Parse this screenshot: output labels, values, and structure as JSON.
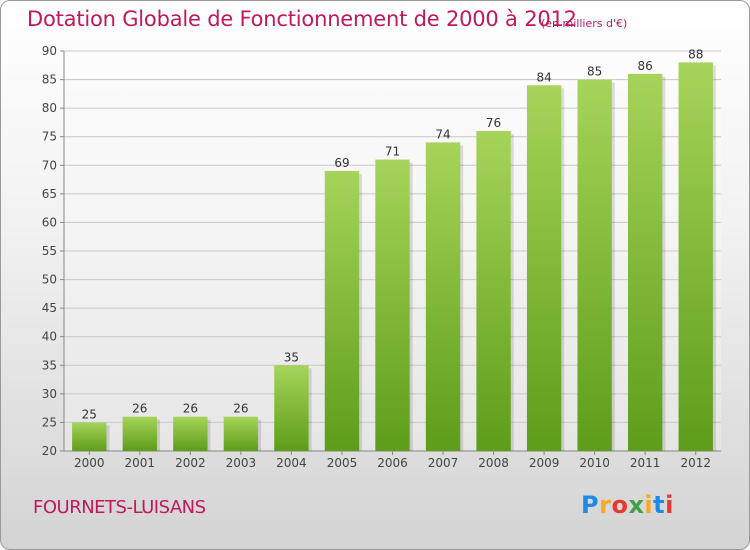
{
  "title": "Dotation Globale de Fonctionnement de 2000 à 2012",
  "unit_note": "(en milliers d'€)",
  "commune": "FOURNETS-LUISANS",
  "logo": {
    "text": "Proxiti",
    "letters": [
      {
        "ch": "P",
        "color": "#1e88e5"
      },
      {
        "ch": "r",
        "color": "#f9a825"
      },
      {
        "ch": "o",
        "color": "#e53935"
      },
      {
        "ch": "x",
        "color": "#43a047"
      },
      {
        "ch": "i",
        "color": "#f9a825"
      },
      {
        "ch": "t",
        "color": "#1e88e5"
      },
      {
        "ch": "i",
        "color": "#e53935"
      }
    ]
  },
  "colors": {
    "accent": "#c2185b",
    "bar_top": "#a6d45a",
    "bar_bottom": "#5d9d1a",
    "grid": "#c8c8c8"
  },
  "chart_data": {
    "type": "bar",
    "categories": [
      "2000",
      "2001",
      "2002",
      "2003",
      "2004",
      "2005",
      "2006",
      "2007",
      "2008",
      "2009",
      "2010",
      "2011",
      "2012"
    ],
    "values": [
      25,
      26,
      26,
      26,
      35,
      69,
      71,
      74,
      76,
      84,
      85,
      86,
      88
    ],
    "ylim": [
      20,
      90
    ],
    "yticks": [
      20,
      25,
      30,
      35,
      40,
      45,
      50,
      55,
      60,
      65,
      70,
      75,
      80,
      85,
      90
    ],
    "grid": true,
    "data_labels": true
  }
}
